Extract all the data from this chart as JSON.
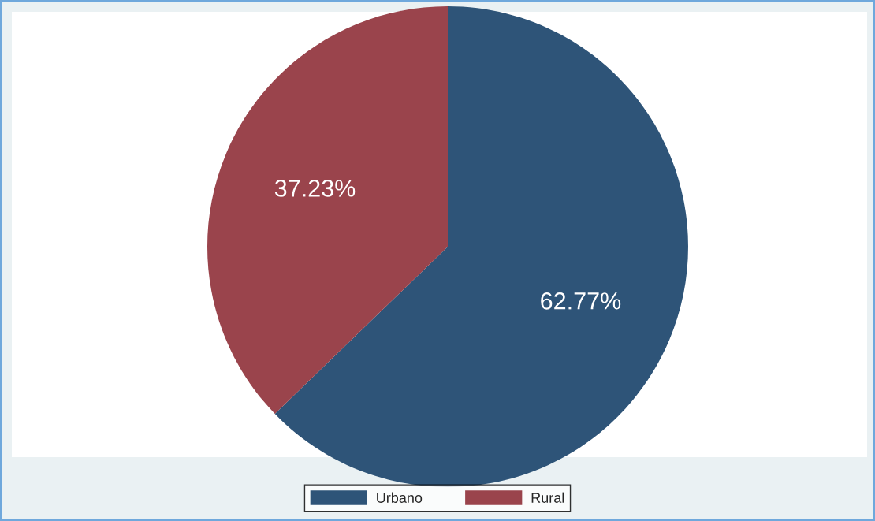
{
  "chart_data": {
    "type": "pie",
    "categories": [
      "Urbano",
      "Rural"
    ],
    "values": [
      62.77,
      37.23
    ],
    "colors": [
      "#2e5478",
      "#9a444c"
    ],
    "value_labels": [
      "62.77%",
      "37.23%"
    ],
    "legend": "bottom"
  }
}
